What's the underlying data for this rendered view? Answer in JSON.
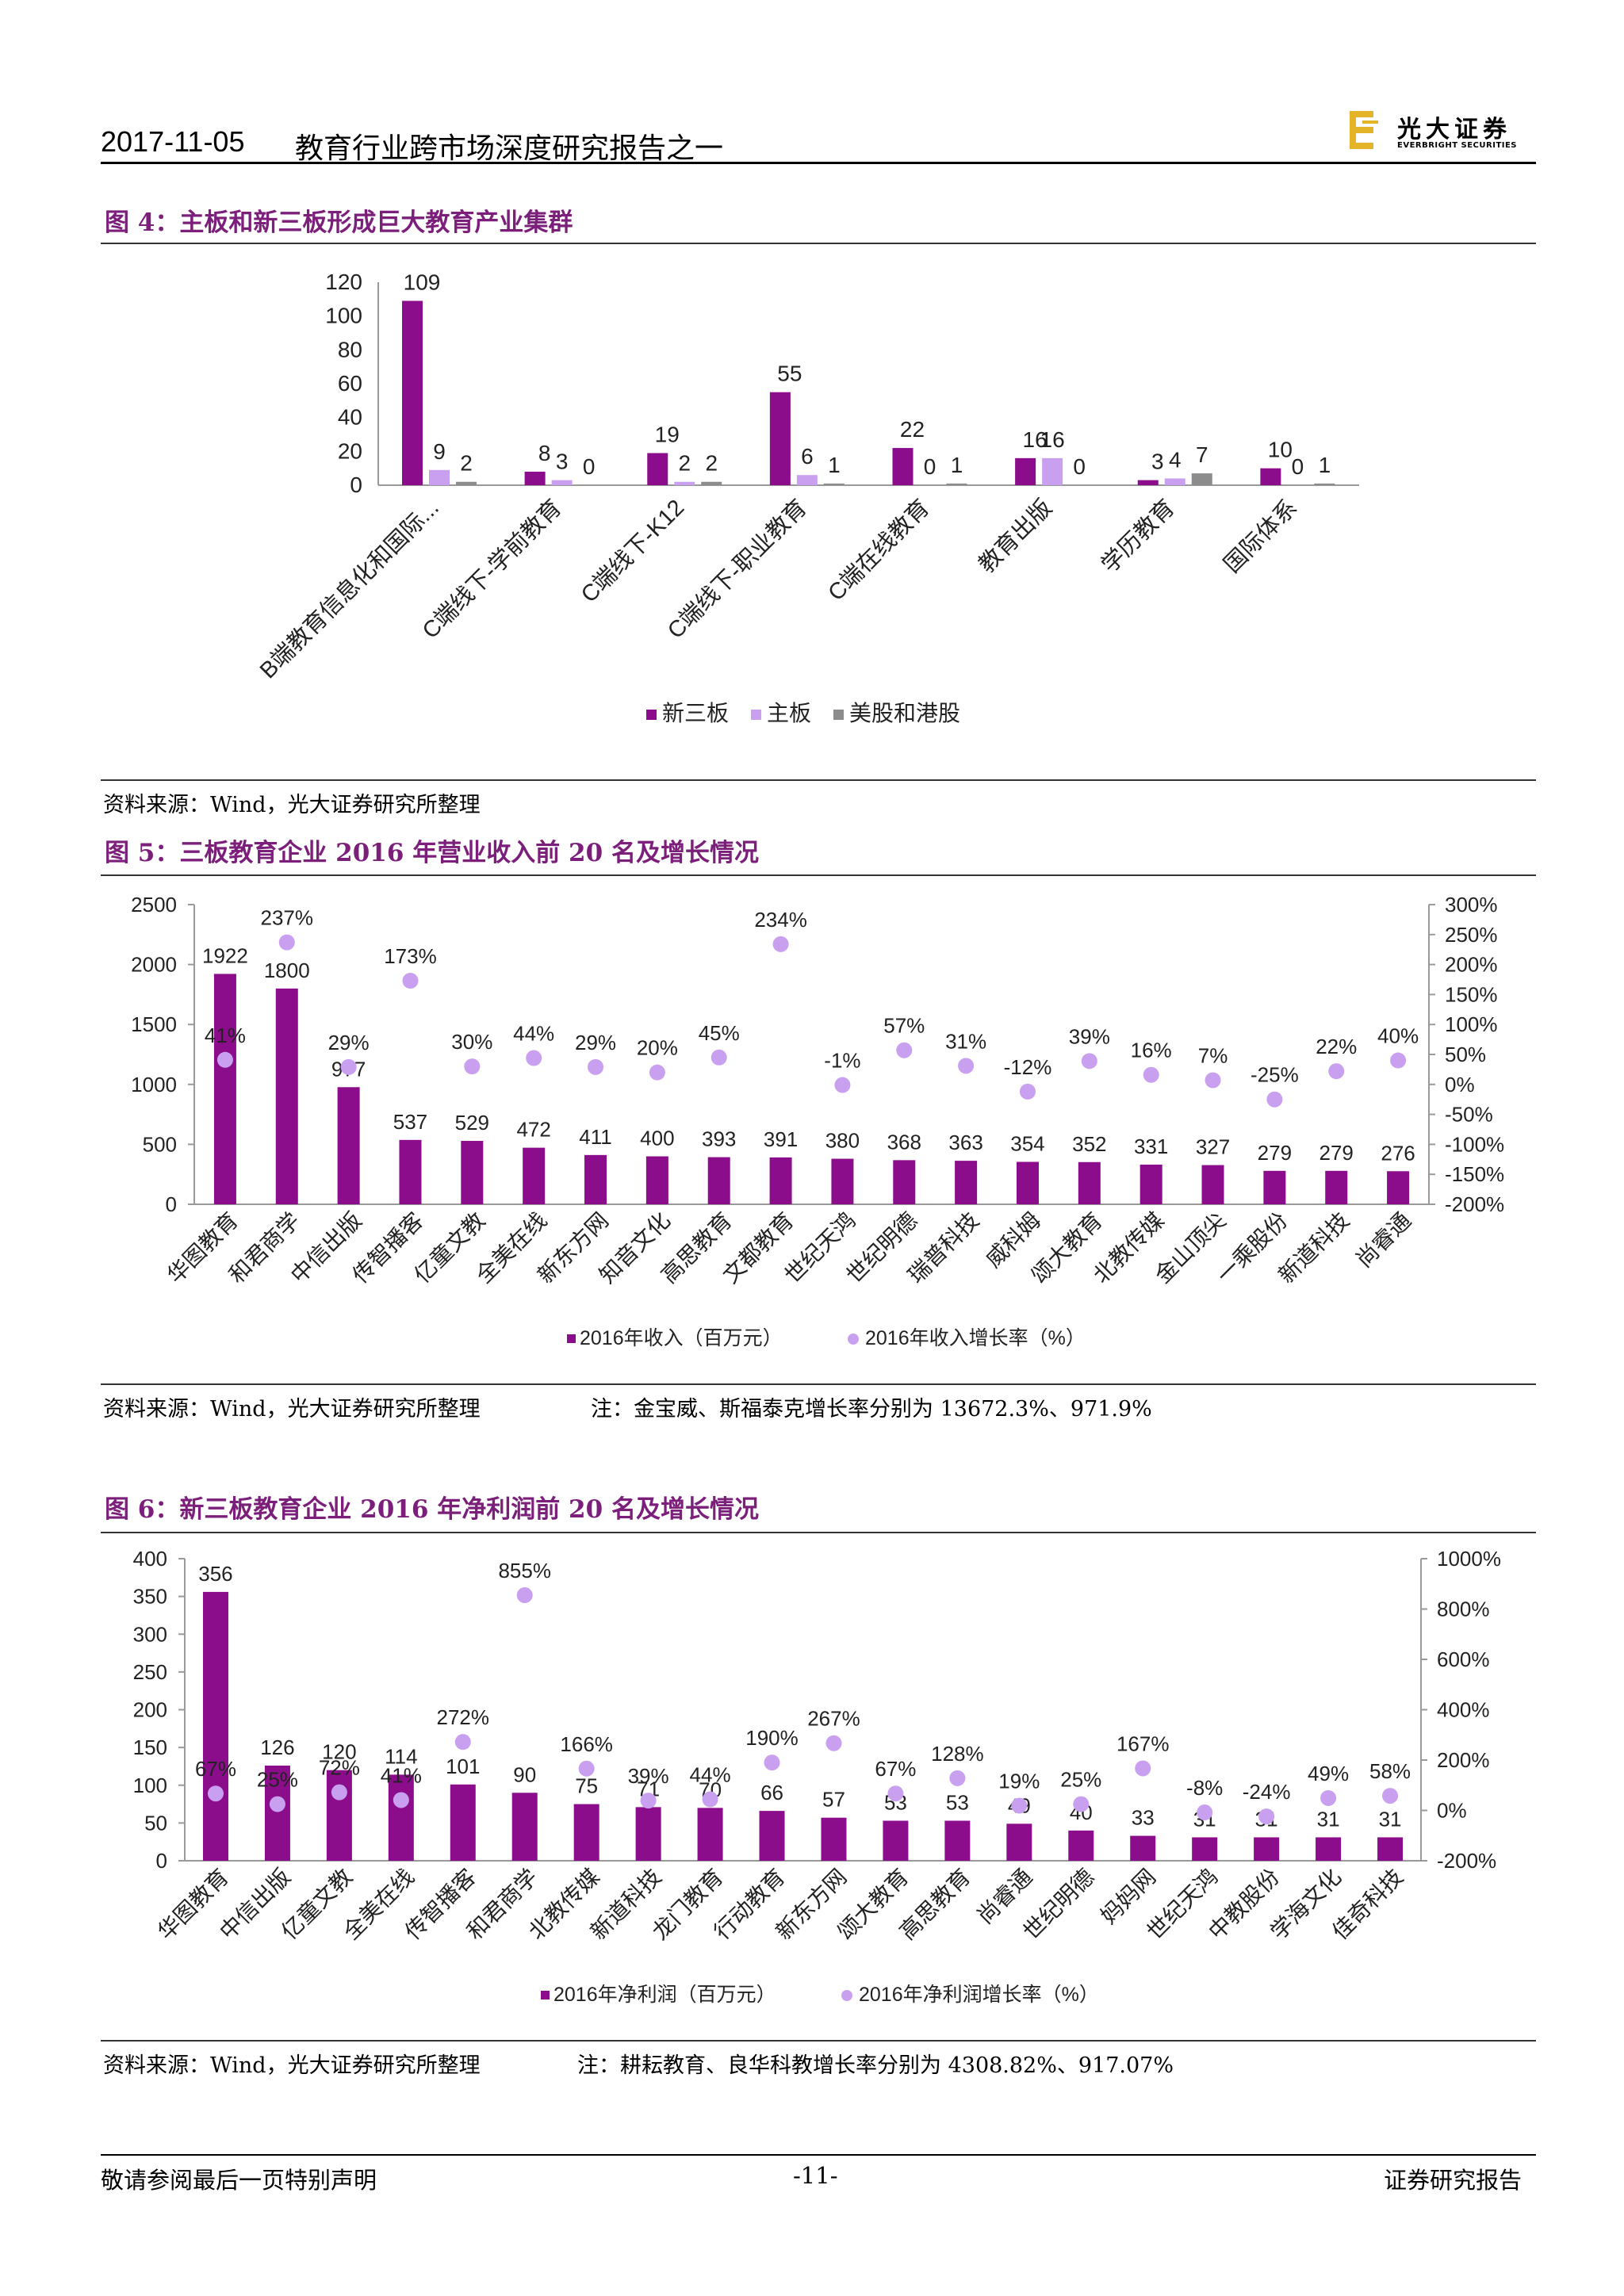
{
  "header": {
    "date": "2017-11-05",
    "title": "教育行业跨市场深度研究报告之一",
    "logo_text": "光大证券",
    "logo_en": "EVERBRIGHT SECURITIES"
  },
  "figures": [
    {
      "title": "图 4：主板和新三板形成巨大教育产业集群",
      "source": "资料来源：Wind，光大证券研究所整理"
    },
    {
      "title": "图 5：三板教育企业 2016 年营业收入前 20 名及增长情况",
      "source": "资料来源：Wind，光大证券研究所整理",
      "note": "注：金宝威、斯福泰克增长率分别为 13672.3%、971.9%"
    },
    {
      "title": "图 6：新三板教育企业 2016 年净利润前 20 名及增长情况",
      "source": "资料来源：Wind，光大证券研究所整理",
      "note": "注：耕耘教育、良华科教增长率分别为 4308.82%、917.07%"
    }
  ],
  "footer": {
    "left": "敬请参阅最后一页特别声明",
    "page": "-11-",
    "right": "证券研究报告"
  },
  "colors": {
    "purple": "#8b0d8b",
    "lilac": "#c9a0f0",
    "gray": "#8c8c8c",
    "title": "#7b1f7b"
  },
  "chart_data": [
    {
      "type": "bar",
      "categories": [
        "B端教育信息化和国际...",
        "C端线下-学前教育",
        "C端线下-K12",
        "C端线下-职业教育",
        "C端在线教育",
        "教育出版",
        "学历教育",
        "国际体系"
      ],
      "series": [
        {
          "name": "新三板",
          "values": [
            109,
            8,
            19,
            55,
            22,
            16,
            3,
            10
          ]
        },
        {
          "name": "主板",
          "values": [
            9,
            3,
            2,
            6,
            0,
            16,
            4,
            0
          ]
        },
        {
          "name": "美股和港股",
          "values": [
            2,
            0,
            2,
            1,
            1,
            0,
            7,
            1
          ]
        }
      ],
      "yticks": [
        "0",
        "20",
        "40",
        "60",
        "80",
        "100",
        "120"
      ],
      "ylim": [
        0,
        120
      ],
      "legend": "bottom"
    },
    {
      "type": "bar",
      "categories": [
        "华图教育",
        "和君商学",
        "中信出版",
        "传智播客",
        "亿童文教",
        "全美在线",
        "新东方网",
        "知音文化",
        "高思教育",
        "文都教育",
        "世纪天鸿",
        "世纪明德",
        "瑞普科技",
        "威科姆",
        "颂大教育",
        "北教传媒",
        "金山顶尖",
        "一乘股份",
        "新道科技",
        "尚睿通"
      ],
      "series": [
        {
          "name": "2016年收入（百万元）",
          "values": [
            1922,
            1800,
            977,
            537,
            529,
            472,
            411,
            400,
            393,
            391,
            380,
            368,
            363,
            354,
            352,
            331,
            327,
            279,
            279,
            276
          ]
        },
        {
          "name": "2016年收入增长率（%）",
          "type": "scatter",
          "axis": "right",
          "values": [
            41,
            237,
            29,
            173,
            30,
            44,
            29,
            20,
            45,
            234,
            -1,
            57,
            31,
            -12,
            39,
            16,
            7,
            -25,
            22,
            40
          ]
        }
      ],
      "value_labels": [
        "1922",
        "1800",
        "977",
        "537",
        "529",
        "472",
        "411",
        "400",
        "393",
        "391",
        "380",
        "368",
        "363",
        "354",
        "352",
        "331",
        "327",
        "279",
        "279",
        "276"
      ],
      "rate_labels": [
        "41%",
        "237%",
        "29%",
        "173%",
        "30%",
        "44%",
        "29%",
        "20%",
        "45%",
        "234%",
        "-1%",
        "57%",
        "31%",
        "-12%",
        "39%",
        "16%",
        "7%",
        "-25%",
        "22%",
        "40%"
      ],
      "yticks": [
        "0",
        "500",
        "1000",
        "1500",
        "2000",
        "2500"
      ],
      "ylim": [
        0,
        2500
      ],
      "y2ticks": [
        "-200%",
        "-150%",
        "-100%",
        "-50%",
        "0%",
        "50%",
        "100%",
        "150%",
        "200%",
        "250%",
        "300%"
      ],
      "y2lim": [
        -200,
        300
      ],
      "legend": "bottom"
    },
    {
      "type": "bar",
      "categories": [
        "华图教育",
        "中信出版",
        "亿童文教",
        "全美在线",
        "传智播客",
        "和君商学",
        "北教传媒",
        "新道科技",
        "龙门教育",
        "行动教育",
        "新东方网",
        "颂大教育",
        "高思教育",
        "尚睿通",
        "世纪明德",
        "妈妈网",
        "世纪天鸿",
        "中教股份",
        "学海文化",
        "佳奇科技"
      ],
      "series": [
        {
          "name": "2016年净利润（百万元）",
          "values": [
            356,
            126,
            120,
            114,
            101,
            90,
            75,
            71,
            70,
            66,
            57,
            53,
            53,
            49,
            40,
            33,
            31,
            31,
            31,
            31
          ]
        },
        {
          "name": "2016年净利润增长率（%）",
          "type": "scatter",
          "axis": "right",
          "values": [
            67,
            25,
            72,
            41,
            272,
            855,
            166,
            39,
            44,
            190,
            267,
            67,
            128,
            19,
            25,
            167,
            -8,
            -24,
            49,
            58
          ]
        }
      ],
      "value_labels": [
        "356",
        "126",
        "120",
        "114",
        "101",
        "90",
        "75",
        "71",
        "70",
        "66",
        "57",
        "53",
        "53",
        "49",
        "40",
        "33",
        "31",
        "31",
        "31",
        "31"
      ],
      "rate_labels": [
        "67%",
        "25%",
        "72%",
        "41%",
        "272%",
        "855%",
        "166%",
        "39%",
        "44%",
        "190%",
        "267%",
        "67%",
        "128%",
        "19%",
        "25%",
        "167%",
        "-8%",
        "-24%",
        "49%",
        "58%"
      ],
      "yticks": [
        "0",
        "50",
        "100",
        "150",
        "200",
        "250",
        "300",
        "350",
        "400"
      ],
      "ylim": [
        0,
        400
      ],
      "y2ticks": [
        "-200%",
        "0%",
        "200%",
        "400%",
        "600%",
        "800%",
        "1000%"
      ],
      "y2lim": [
        -200,
        1000
      ],
      "legend": "bottom"
    }
  ]
}
